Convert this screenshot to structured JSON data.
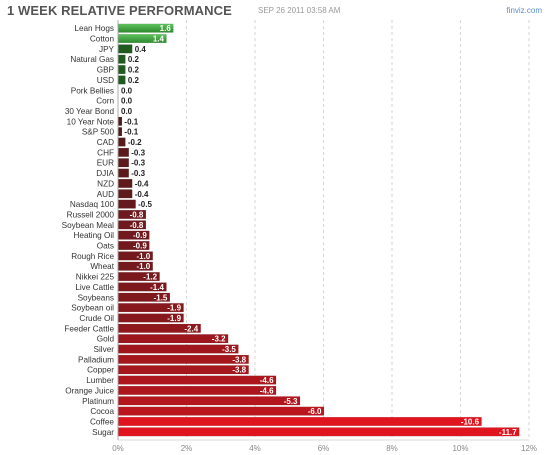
{
  "header": {
    "title": "1 WEEK RELATIVE PERFORMANCE",
    "timestamp": "SEP 26 2011 03:58 AM",
    "brand": "finviz.com"
  },
  "colors": {
    "positive_bar": "#3a9a3a",
    "positive_dark": "#1f5a1f",
    "negative_dark": "#3a1c1c",
    "negative_bright": "#e0141e",
    "grid": "#cccccc"
  },
  "chart_data": {
    "type": "bar",
    "orientation": "horizontal",
    "title": "1 WEEK RELATIVE PERFORMANCE",
    "categories": [
      "Lean Hogs",
      "Cotton",
      "JPY",
      "Natural Gas",
      "GBP",
      "USD",
      "Pork Bellies",
      "Corn",
      "30 Year Bond",
      "10 Year Note",
      "S&P 500",
      "CAD",
      "CHF",
      "EUR",
      "DJIA",
      "NZD",
      "AUD",
      "Nasdaq 100",
      "Russell 2000",
      "Soybean Meal",
      "Heating Oil",
      "Oats",
      "Rough Rice",
      "Wheat",
      "Nikkei 225",
      "Live Cattle",
      "Soybeans",
      "Soybean oil",
      "Crude Oil",
      "Feeder Cattle",
      "Gold",
      "Silver",
      "Palladium",
      "Copper",
      "Lumber",
      "Orange Juice",
      "Platinum",
      "Cocoa",
      "Coffee",
      "Sugar"
    ],
    "values": [
      1.6,
      1.4,
      0.4,
      0.2,
      0.2,
      0.2,
      0.0,
      0.0,
      0.0,
      -0.1,
      -0.1,
      -0.2,
      -0.3,
      -0.3,
      -0.3,
      -0.4,
      -0.4,
      -0.5,
      -0.8,
      -0.8,
      -0.9,
      -0.9,
      -1.0,
      -1.0,
      -1.2,
      -1.4,
      -1.5,
      -1.9,
      -1.9,
      -2.4,
      -3.2,
      -3.5,
      -3.8,
      -3.8,
      -4.6,
      -4.6,
      -5.3,
      -6.0,
      -10.6,
      -11.7
    ],
    "value_labels": [
      "1.6",
      "1.4",
      "0.4",
      "0.2",
      "0.2",
      "0.2",
      "0.0",
      "0.0",
      "0.0",
      "-0.1",
      "-0.1",
      "-0.2",
      "-0.3",
      "-0.3",
      "-0.3",
      "-0.4",
      "-0.4",
      "-0.5",
      "-0.8",
      "-0.8",
      "-0.9",
      "-0.9",
      "-1.0",
      "-1.0",
      "-1.2",
      "-1.4",
      "-1.5",
      "-1.9",
      "-1.9",
      "-2.4",
      "-3.2",
      "-3.5",
      "-3.8",
      "-3.8",
      "-4.6",
      "-4.6",
      "-5.3",
      "-6.0",
      "-10.6",
      "-11.7"
    ],
    "xaxis": {
      "ticks": [
        0,
        2,
        4,
        6,
        8,
        10,
        12
      ],
      "tick_labels": [
        "0%",
        "2%",
        "4%",
        "6%",
        "8%",
        "10%",
        "12%"
      ],
      "range": [
        0,
        12
      ],
      "scale": "absolute value"
    },
    "grid": true,
    "legend": "none"
  }
}
